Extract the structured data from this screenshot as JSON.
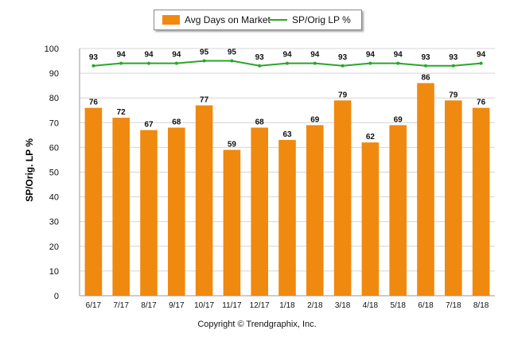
{
  "chart_data": {
    "type": "bar",
    "categories": [
      "6/17",
      "7/17",
      "8/17",
      "9/17",
      "10/17",
      "11/17",
      "12/17",
      "1/18",
      "2/18",
      "3/18",
      "4/18",
      "5/18",
      "6/18",
      "7/18",
      "8/18"
    ],
    "series": [
      {
        "name": "Avg Days on Market",
        "type": "bar",
        "color": "#f0890f",
        "values": [
          76,
          72,
          67,
          68,
          77,
          59,
          68,
          63,
          69,
          79,
          62,
          69,
          86,
          79,
          76
        ]
      },
      {
        "name": "SP/Orig LP %",
        "type": "line",
        "color": "#2aa52a",
        "values": [
          93,
          94,
          94,
          94,
          95,
          95,
          93,
          94,
          94,
          93,
          94,
          94,
          93,
          93,
          94
        ]
      }
    ],
    "ylabel": "SP/Orig. LP %",
    "ylim": [
      0,
      100
    ],
    "yticks": [
      0,
      10,
      20,
      30,
      40,
      50,
      60,
      70,
      80,
      90,
      100
    ],
    "grid": true,
    "legend_position": "top-center"
  },
  "footer": {
    "text": "Copyright © Trendgraphix, Inc."
  }
}
